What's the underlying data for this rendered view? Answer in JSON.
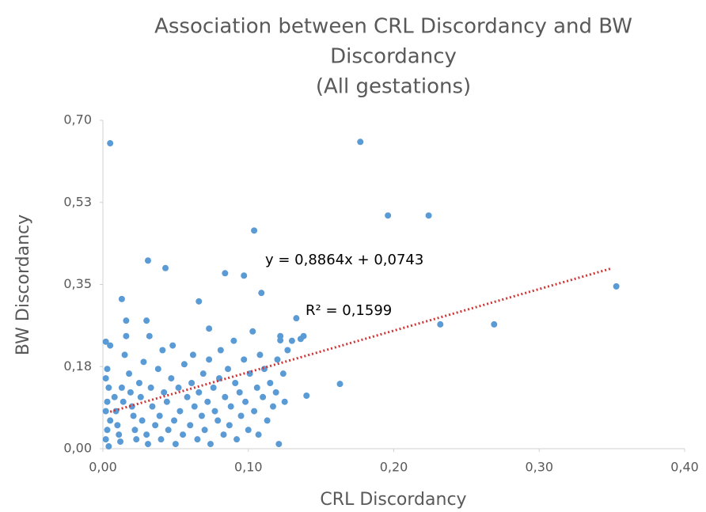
{
  "chart_data": {
    "type": "scatter",
    "title": [
      "Association between CRL Discordancy and BW",
      "Discordancy",
      "(All gestations)"
    ],
    "x_label": "CRL Discordancy",
    "y_label": "BW Discordancy",
    "color": "#5b9bd5",
    "xlim": [
      0,
      0.4
    ],
    "ylim": [
      0,
      0.7
    ],
    "xticks": [
      {
        "value": 0,
        "label": "0,00"
      },
      {
        "value": 0.1,
        "label": "0,10"
      },
      {
        "value": 0.2,
        "label": "0,20"
      },
      {
        "value": 0.3,
        "label": "0,30"
      },
      {
        "value": 0.4,
        "label": "0,40"
      }
    ],
    "yticks": [
      {
        "value": 0,
        "label": "0,00"
      },
      {
        "value": 0.175,
        "label": "0,18"
      },
      {
        "value": 0.35,
        "label": "0,35"
      },
      {
        "value": 0.525,
        "label": "0,53"
      },
      {
        "value": 0.7,
        "label": "0,70"
      }
    ],
    "x": [
      0.005,
      0.177,
      0.196,
      0.224,
      0.104,
      0.031,
      0.043,
      0.353,
      0.232,
      0.269,
      0.163,
      0.14,
      0.066,
      0.013,
      0.084,
      0.097,
      0.109,
      0.133,
      0.136,
      0.122,
      0.073,
      0.016,
      0.03,
      0.002,
      0.005,
      0.003,
      0.002,
      0.004,
      0.003,
      0.002,
      0.005,
      0.003,
      0.002,
      0.004,
      0.008,
      0.009,
      0.01,
      0.011,
      0.012,
      0.013,
      0.014,
      0.015,
      0.016,
      0.018,
      0.019,
      0.02,
      0.021,
      0.022,
      0.023,
      0.025,
      0.026,
      0.027,
      0.028,
      0.03,
      0.031,
      0.032,
      0.033,
      0.034,
      0.036,
      0.038,
      0.039,
      0.04,
      0.041,
      0.042,
      0.044,
      0.045,
      0.047,
      0.048,
      0.049,
      0.05,
      0.052,
      0.053,
      0.055,
      0.056,
      0.058,
      0.06,
      0.061,
      0.062,
      0.063,
      0.065,
      0.066,
      0.068,
      0.069,
      0.07,
      0.072,
      0.073,
      0.074,
      0.076,
      0.077,
      0.079,
      0.08,
      0.081,
      0.083,
      0.084,
      0.086,
      0.087,
      0.088,
      0.09,
      0.091,
      0.092,
      0.094,
      0.095,
      0.097,
      0.098,
      0.1,
      0.101,
      0.103,
      0.104,
      0.106,
      0.107,
      0.108,
      0.11,
      0.111,
      0.113,
      0.115,
      0.117,
      0.119,
      0.121,
      0.122,
      0.124,
      0.125,
      0.127,
      0.13,
      0.138,
      0.12
    ],
    "values": [
      0.651,
      0.654,
      0.497,
      0.497,
      0.465,
      0.401,
      0.385,
      0.346,
      0.265,
      0.265,
      0.138,
      0.113,
      0.314,
      0.319,
      0.374,
      0.369,
      0.332,
      0.278,
      0.234,
      0.231,
      0.256,
      0.273,
      0.273,
      0.228,
      0.22,
      0.17,
      0.15,
      0.13,
      0.1,
      0.08,
      0.06,
      0.04,
      0.02,
      0.005,
      0.11,
      0.08,
      0.05,
      0.03,
      0.015,
      0.13,
      0.1,
      0.2,
      0.24,
      0.16,
      0.12,
      0.09,
      0.07,
      0.04,
      0.02,
      0.14,
      0.11,
      0.06,
      0.185,
      0.03,
      0.01,
      0.24,
      0.13,
      0.09,
      0.05,
      0.17,
      0.07,
      0.02,
      0.21,
      0.12,
      0.1,
      0.04,
      0.15,
      0.22,
      0.06,
      0.01,
      0.13,
      0.08,
      0.03,
      0.18,
      0.11,
      0.05,
      0.14,
      0.2,
      0.09,
      0.02,
      0.12,
      0.07,
      0.16,
      0.04,
      0.1,
      0.19,
      0.01,
      0.13,
      0.08,
      0.06,
      0.15,
      0.21,
      0.03,
      0.11,
      0.17,
      0.05,
      0.09,
      0.23,
      0.14,
      0.02,
      0.12,
      0.07,
      0.19,
      0.1,
      0.04,
      0.16,
      0.25,
      0.08,
      0.13,
      0.03,
      0.2,
      0.11,
      0.17,
      0.06,
      0.14,
      0.09,
      0.12,
      0.01,
      0.24,
      0.16,
      0.1,
      0.21,
      0.23,
      0.24,
      0.19
    ],
    "trendline": {
      "slope": 0.8864,
      "intercept": 0.0743,
      "x_range": [
        0.005,
        0.35
      ],
      "color": "#d03434",
      "label": "y = 0,8864x + 0,0743",
      "r2": 0.1599,
      "r2_label": "R² = 0,1599"
    }
  }
}
